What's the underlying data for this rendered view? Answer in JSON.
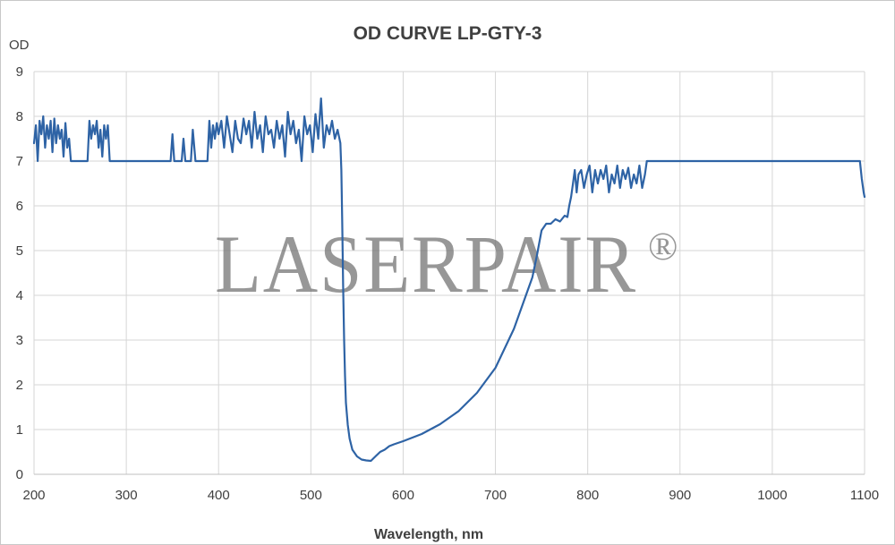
{
  "chart_data": {
    "type": "line",
    "title": "OD CURVE LP-GTY-3",
    "xlabel": "Wavelength, nm",
    "ylabel": "OD",
    "xlim": [
      200,
      1100
    ],
    "ylim": [
      0,
      9
    ],
    "x_ticks": [
      "200",
      "300",
      "400",
      "500",
      "600",
      "700",
      "800",
      "900",
      "1000",
      "1100"
    ],
    "y_ticks": [
      "0",
      "1",
      "2",
      "3",
      "4",
      "5",
      "6",
      "7",
      "8",
      "9"
    ],
    "grid": true,
    "series_color": "#2e63a5",
    "watermark": "LASERPAIR",
    "watermark_mark": "®",
    "series": [
      {
        "x": [
          200,
          202,
          204,
          206,
          208,
          210,
          212,
          214,
          216,
          218,
          220,
          222,
          224,
          226,
          228,
          230,
          232,
          234,
          236,
          238,
          240,
          245,
          250,
          255,
          258,
          260,
          262,
          264,
          266,
          268,
          270,
          272,
          274,
          276,
          278,
          280,
          282,
          285,
          290,
          300,
          320,
          340,
          348,
          350,
          352,
          355,
          360,
          362,
          364,
          368,
          370,
          372,
          375,
          380,
          386,
          388,
          390,
          392,
          394,
          396,
          398,
          400,
          403,
          406,
          409,
          412,
          415,
          418,
          421,
          424,
          427,
          430,
          433,
          436,
          439,
          442,
          445,
          448,
          451,
          454,
          457,
          460,
          463,
          466,
          469,
          472,
          475,
          478,
          481,
          484,
          487,
          490,
          493,
          496,
          499,
          502,
          505,
          508,
          511,
          514,
          517,
          520,
          523,
          526,
          529,
          532,
          533,
          534,
          535,
          536,
          537,
          538,
          540,
          542,
          545,
          550,
          555,
          560,
          565,
          570,
          575,
          580,
          585,
          590,
          600,
          620,
          640,
          660,
          680,
          700,
          720,
          740,
          745,
          750,
          755,
          760,
          765,
          770,
          775,
          778,
          780,
          782,
          784,
          786,
          788,
          790,
          793,
          796,
          799,
          802,
          805,
          808,
          811,
          814,
          817,
          820,
          823,
          826,
          829,
          832,
          835,
          838,
          841,
          844,
          847,
          850,
          853,
          856,
          859,
          862,
          864,
          866,
          880,
          900,
          950,
          1000,
          1050,
          1090,
          1095,
          1097,
          1099,
          1100
        ],
        "y": [
          7.4,
          7.8,
          7.0,
          7.9,
          7.6,
          8.0,
          7.3,
          7.8,
          7.5,
          7.9,
          7.2,
          7.95,
          7.4,
          7.8,
          7.5,
          7.7,
          7.1,
          7.85,
          7.3,
          7.5,
          7.0,
          7.0,
          7.0,
          7.0,
          7.0,
          7.9,
          7.5,
          7.8,
          7.6,
          7.9,
          7.3,
          7.7,
          7.1,
          7.8,
          7.5,
          7.8,
          7.0,
          7.0,
          7.0,
          7.0,
          7.0,
          7.0,
          7.0,
          7.6,
          7.0,
          7.0,
          7.0,
          7.5,
          7.0,
          7.0,
          7.0,
          7.7,
          7.0,
          7.0,
          7.0,
          7.0,
          7.9,
          7.3,
          7.8,
          7.5,
          7.85,
          7.6,
          7.9,
          7.3,
          8.0,
          7.6,
          7.2,
          7.9,
          7.5,
          7.4,
          7.95,
          7.6,
          7.9,
          7.3,
          8.1,
          7.5,
          7.8,
          7.2,
          8.0,
          7.6,
          7.7,
          7.3,
          7.9,
          7.5,
          7.8,
          7.1,
          8.1,
          7.6,
          7.9,
          7.4,
          7.7,
          7.0,
          8.0,
          7.6,
          7.8,
          7.2,
          8.05,
          7.5,
          8.4,
          7.3,
          7.8,
          7.6,
          7.9,
          7.5,
          7.7,
          7.4,
          6.8,
          5.6,
          4.2,
          3.0,
          2.2,
          1.6,
          1.1,
          0.8,
          0.55,
          0.4,
          0.33,
          0.31,
          0.3,
          0.4,
          0.5,
          0.55,
          0.63,
          0.67,
          0.74,
          0.9,
          1.12,
          1.41,
          1.82,
          2.38,
          3.25,
          4.4,
          4.9,
          5.45,
          5.6,
          5.6,
          5.7,
          5.65,
          5.78,
          5.75,
          6.0,
          6.2,
          6.5,
          6.8,
          6.3,
          6.7,
          6.8,
          6.4,
          6.7,
          6.9,
          6.3,
          6.8,
          6.5,
          6.8,
          6.6,
          6.9,
          6.3,
          6.7,
          6.5,
          6.9,
          6.4,
          6.8,
          6.6,
          6.85,
          6.4,
          6.7,
          6.5,
          6.9,
          6.4,
          6.7,
          7.0,
          7.0,
          7.0,
          7.0,
          7.0,
          7.0,
          7.0,
          7.0,
          7.0,
          6.6,
          6.3,
          6.2
        ]
      }
    ]
  }
}
